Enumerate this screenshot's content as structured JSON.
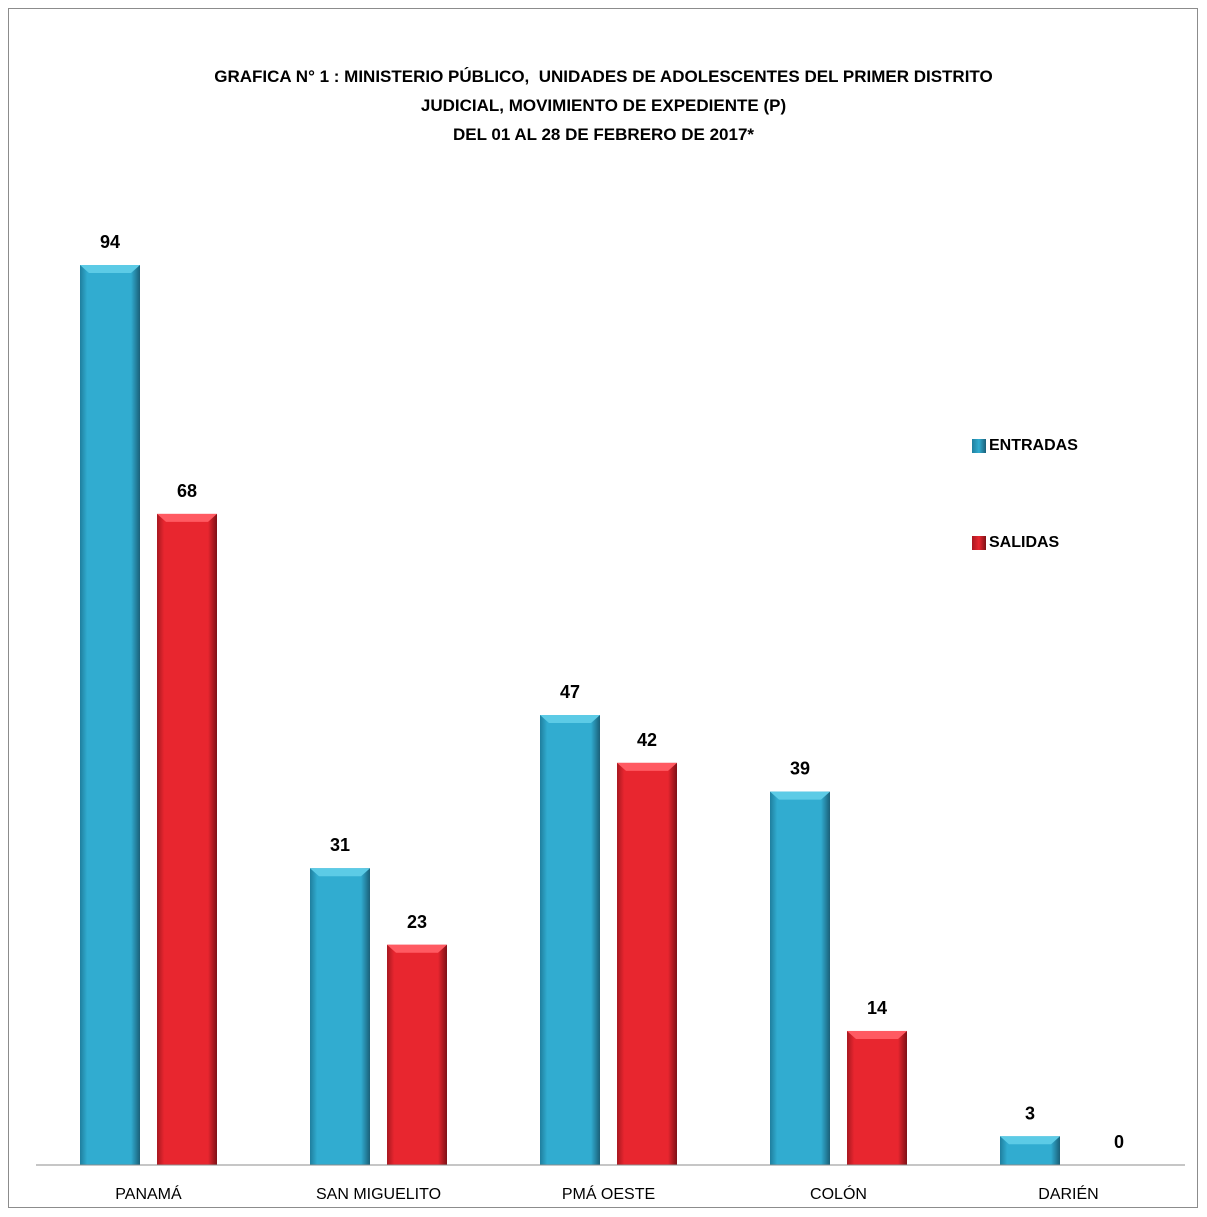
{
  "chart_data": {
    "type": "bar",
    "title_lines": [
      "GRAFICA N° 1 : MINISTERIO PÚBLICO,  UNIDADES DE ADOLESCENTES DEL PRIMER DISTRITO",
      "JUDICIAL, MOVIMIENTO DE EXPEDIENTE (P)",
      "DEL 01 AL 28 DE FEBRERO DE 2017*"
    ],
    "xlabel": "",
    "ylabel": "",
    "ylim": [
      0,
      100
    ],
    "grid": false,
    "legend_position": "right",
    "categories": [
      "PANAMÁ",
      "SAN MIGUELITO",
      "PMÁ OESTE",
      "COLÓN",
      "DARIÉN"
    ],
    "series": [
      {
        "name": "ENTRADAS",
        "color": "#31acd0",
        "values": [
          94,
          31,
          47,
          39,
          3
        ]
      },
      {
        "name": "SALIDAS",
        "color": "#e8262f",
        "values": [
          68,
          23,
          42,
          14,
          0
        ]
      }
    ]
  }
}
